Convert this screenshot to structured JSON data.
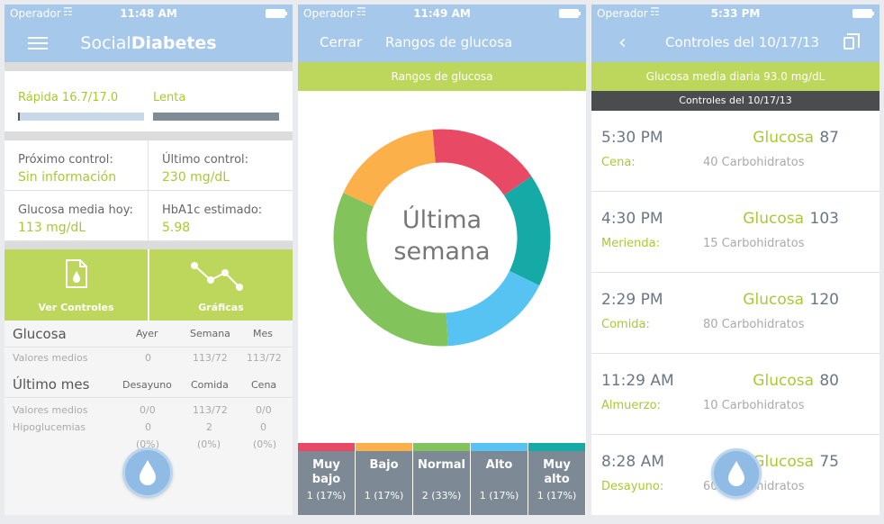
{
  "status": {
    "carrier": "Operador",
    "screen1_time": "11:48 AM",
    "screen2_time": "11:49 AM",
    "screen3_time": "5:33 PM"
  },
  "screen1": {
    "logo_light": "Social",
    "logo_bold": "Diabetes",
    "rapida_label": "Rápida 16.7/17.0",
    "lenta_label": "Lenta",
    "proximo_label": "Próximo control:",
    "proximo_value": "Sin información",
    "ultimo_label": "Último control:",
    "ultimo_value": "230 mg/dL",
    "media_label": "Glucosa media hoy:",
    "media_value": "113 mg/dL",
    "hba1c_label": "HbA1c estimado:",
    "hba1c_value": "5.98",
    "ver_controles": "Ver Controles",
    "graficas": "Gráficas",
    "glucosa_header": "Glucosa",
    "col_ayer": "Ayer",
    "col_semana": "Semana",
    "col_mes": "Mes",
    "valores_medios": "Valores medios",
    "vm_ayer": "0",
    "vm_semana": "113/72",
    "vm_mes": "113/72",
    "ultimo_mes_header": "Último mes",
    "col_desayuno": "Desayuno",
    "col_comida": "Comida",
    "col_cena": "Cena",
    "valores_medios2": "Valores medios",
    "vm2_desayuno": "0/0",
    "vm2_comida": "113/72",
    "vm2_cena": "0/0",
    "hipoglucemias": "Hipoglucemias",
    "hipo_desayuno": "0",
    "hipo_comida": "2",
    "hipo_cena": "0",
    "pct_desayuno": "(0%)",
    "pct_comida": "(0%)",
    "pct_cena": "(0%)"
  },
  "screen2": {
    "cerrar": "Cerrar",
    "title": "Rangos de glucosa",
    "band": "Rangos de glucosa",
    "center_line1": "Última",
    "center_line2": "semana",
    "segments": [
      {
        "name1": "Muy",
        "name2": "bajo",
        "count": "1 (17%)",
        "color": "#e84a65"
      },
      {
        "name1": "Bajo",
        "name2": "",
        "count": "1 (17%)",
        "color": "#fbb04a"
      },
      {
        "name1": "Normal",
        "name2": "",
        "count": "2 (33%)",
        "color": "#82c45b"
      },
      {
        "name1": "Alto",
        "name2": "",
        "count": "1 (17%)",
        "color": "#56c3f2"
      },
      {
        "name1": "Muy",
        "name2": "alto",
        "count": "1 (17%)",
        "color": "#16aaa7"
      }
    ]
  },
  "screen3": {
    "title": "Controles del 10/17/13",
    "avg_band": "Glucosa media diaria 93.0 mg/dL",
    "dark_band": "Controles del 10/17/13",
    "glucosa_label": "Glucosa",
    "entries": [
      {
        "time": "5:30 PM",
        "value": "87",
        "meal": "Cena:",
        "carbs": "40 Carbohidratos"
      },
      {
        "time": "4:30 PM",
        "value": "103",
        "meal": "Merienda:",
        "carbs": "15 Carbohidratos"
      },
      {
        "time": "2:29 PM",
        "value": "120",
        "meal": "Comida:",
        "carbs": "80 Carbohidratos"
      },
      {
        "time": "11:29 AM",
        "value": "80",
        "meal": "Almuerzo:",
        "carbs": "10 Carbohidratos"
      },
      {
        "time": "8:28 AM",
        "value": "75",
        "meal": "Desayuno:",
        "carbs": "60 Carbohidratos"
      }
    ]
  },
  "colors": {
    "nav_blue": "#a6c8ea",
    "lime": "#a9c934",
    "green_band": "#bcd75b",
    "muy_bajo": "#e84a65",
    "bajo": "#fbb04a",
    "normal": "#82c45b",
    "alto": "#56c3f2",
    "muy_alto": "#16aaa7"
  }
}
